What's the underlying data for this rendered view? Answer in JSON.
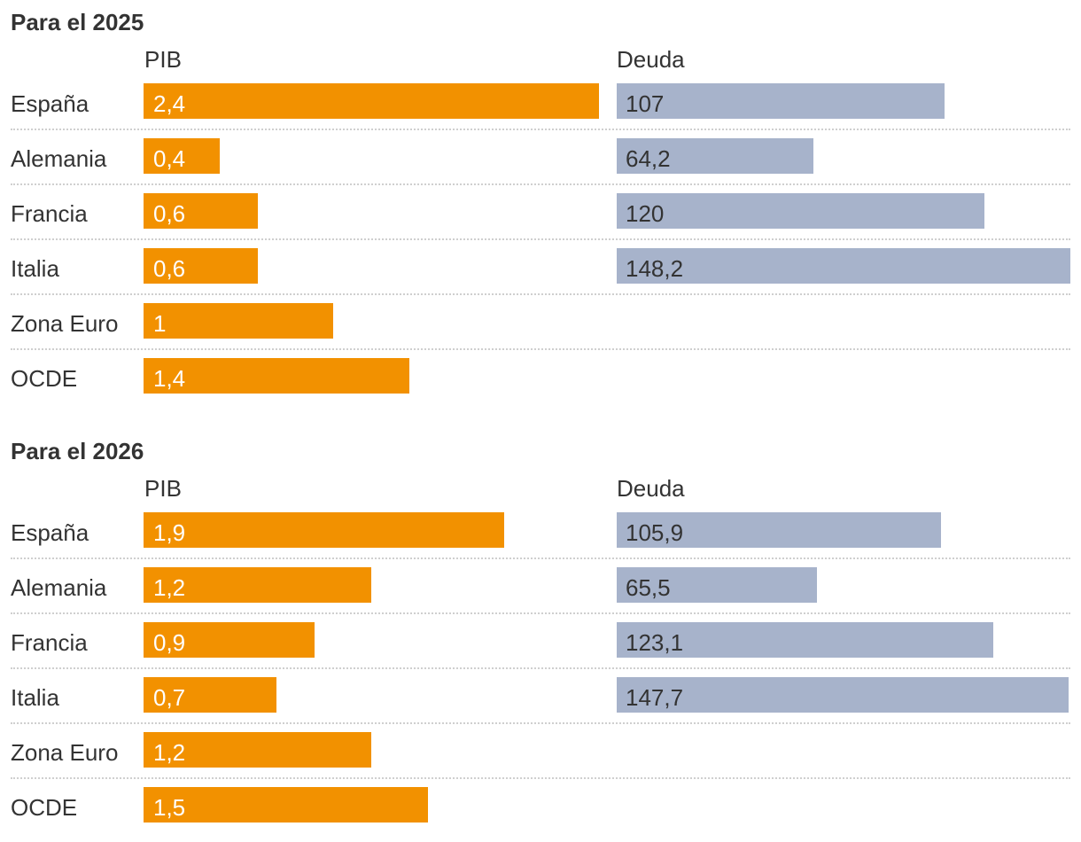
{
  "chart_data": [
    {
      "type": "bar",
      "title": "Para el 2025",
      "categories": [
        "España",
        "Alemania",
        "Francia",
        "Italia",
        "Zona Euro",
        "OCDE"
      ],
      "series": [
        {
          "name": "PIB",
          "values": [
            2.4,
            0.4,
            0.6,
            0.6,
            1,
            1.4
          ],
          "labels": [
            "2,4",
            "0,4",
            "0,6",
            "0,6",
            "1",
            "1,4"
          ],
          "color": "#f29100"
        },
        {
          "name": "Deuda",
          "values": [
            107,
            64.2,
            120,
            148.2,
            null,
            null
          ],
          "labels": [
            "107",
            "64,2",
            "120",
            "148,2",
            "",
            ""
          ],
          "color": "#a7b3cb"
        }
      ]
    },
    {
      "type": "bar",
      "title": "Para el 2026",
      "categories": [
        "España",
        "Alemania",
        "Francia",
        "Italia",
        "Zona Euro",
        "OCDE"
      ],
      "series": [
        {
          "name": "PIB",
          "values": [
            1.9,
            1.2,
            0.9,
            0.7,
            1.2,
            1.5
          ],
          "labels": [
            "1,9",
            "1,2",
            "0,9",
            "0,7",
            "1,2",
            "1,5"
          ],
          "color": "#f29100"
        },
        {
          "name": "Deuda",
          "values": [
            105.9,
            65.5,
            123.1,
            147.7,
            null,
            null
          ],
          "labels": [
            "105,9",
            "65,5",
            "123,1",
            "147,7",
            "",
            ""
          ],
          "color": "#a7b3cb"
        }
      ]
    }
  ]
}
